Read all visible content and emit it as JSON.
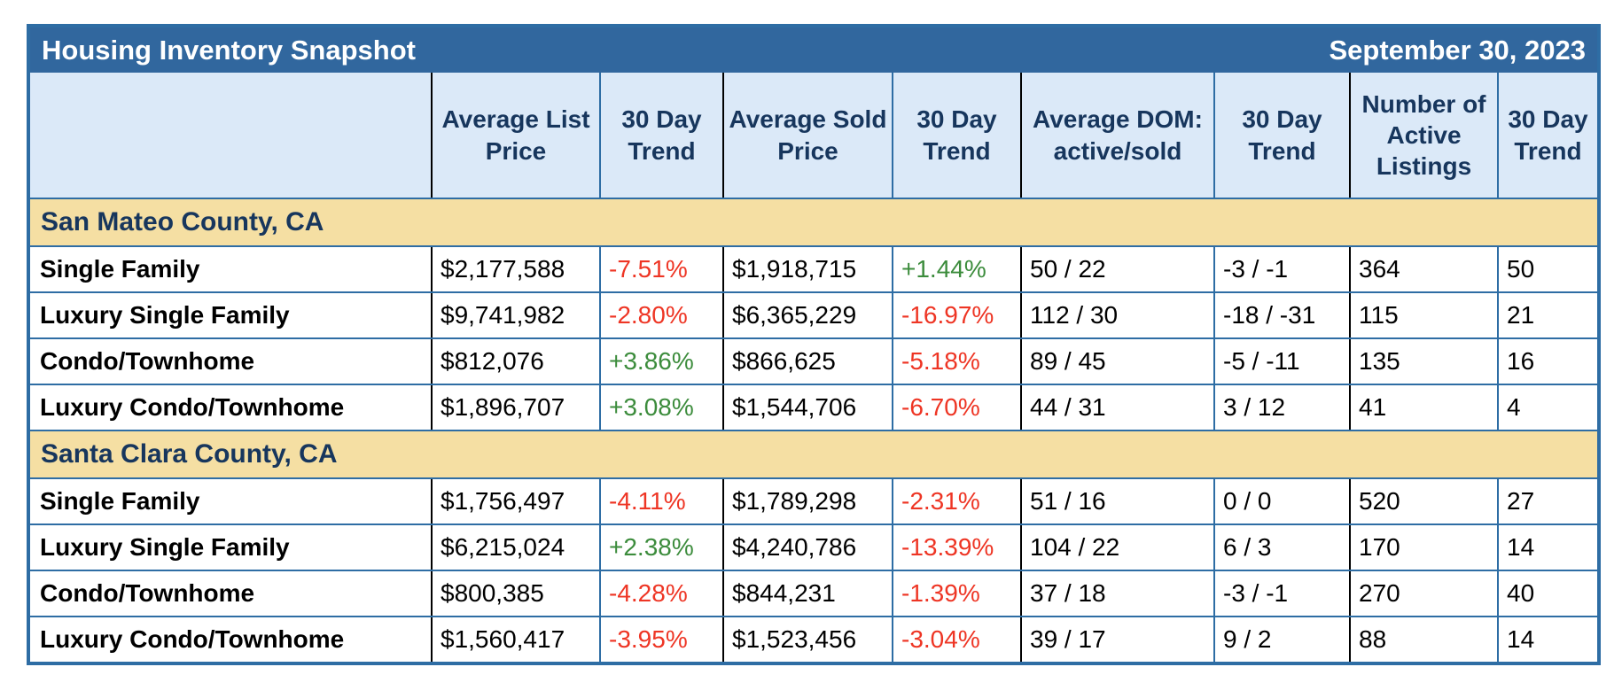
{
  "title": "Housing Inventory Snapshot",
  "date": "September 30, 2023",
  "colors": {
    "title_bar_blue": "#31679e",
    "border_blue": "#2e6da4",
    "header_light_blue": "#dbe9f8",
    "section_band_tan": "#f5dfa3",
    "navy_text": "#17365d",
    "negative_red": "#ee3524",
    "positive_green": "#3c8c3c",
    "group_divider_black": "#000000"
  },
  "columns": [
    "Average List Price",
    "30 Day Trend",
    "Average Sold Price",
    "30 Day Trend",
    "Average DOM: active/sold",
    "30 Day Trend",
    "Number of Active Listings",
    "30 Day Trend"
  ],
  "sections": [
    {
      "name": "San Mateo County, CA",
      "rows": [
        {
          "label": "Single Family",
          "list_price": "$2,177,588",
          "list_trend": "-7.51%",
          "sold_price": "$1,918,715",
          "sold_trend": "+1.44%",
          "dom": "50 / 22",
          "dom_trend": "-3 / -1",
          "active": "364",
          "active_trend": "50"
        },
        {
          "label": "Luxury Single Family",
          "list_price": "$9,741,982",
          "list_trend": "-2.80%",
          "sold_price": "$6,365,229",
          "sold_trend": "-16.97%",
          "dom": "112 / 30",
          "dom_trend": "-18 / -31",
          "active": "115",
          "active_trend": "21"
        },
        {
          "label": "Condo/Townhome",
          "list_price": "$812,076",
          "list_trend": "+3.86%",
          "sold_price": "$866,625",
          "sold_trend": "-5.18%",
          "dom": "89 / 45",
          "dom_trend": "-5 / -11",
          "active": "135",
          "active_trend": "16"
        },
        {
          "label": "Luxury Condo/Townhome",
          "list_price": "$1,896,707",
          "list_trend": "+3.08%",
          "sold_price": "$1,544,706",
          "sold_trend": "-6.70%",
          "dom": "44 / 31",
          "dom_trend": "3 / 12",
          "active": "41",
          "active_trend": "4"
        }
      ]
    },
    {
      "name": "Santa Clara County, CA",
      "rows": [
        {
          "label": "Single Family",
          "list_price": "$1,756,497",
          "list_trend": "-4.11%",
          "sold_price": "$1,789,298",
          "sold_trend": "-2.31%",
          "dom": "51 / 16",
          "dom_trend": "0 / 0",
          "active": "520",
          "active_trend": "27"
        },
        {
          "label": "Luxury Single Family",
          "list_price": "$6,215,024",
          "list_trend": "+2.38%",
          "sold_price": "$4,240,786",
          "sold_trend": "-13.39%",
          "dom": "104 / 22",
          "dom_trend": "6 / 3",
          "active": "170",
          "active_trend": "14"
        },
        {
          "label": "Condo/Townhome",
          "list_price": "$800,385",
          "list_trend": "-4.28%",
          "sold_price": "$844,231",
          "sold_trend": "-1.39%",
          "dom": "37 / 18",
          "dom_trend": "-3 / -1",
          "active": "270",
          "active_trend": "40"
        },
        {
          "label": "Luxury Condo/Townhome",
          "list_price": "$1,560,417",
          "list_trend": "-3.95%",
          "sold_price": "$1,523,456",
          "sold_trend": "-3.04%",
          "dom": "39 / 17",
          "dom_trend": "9 / 2",
          "active": "88",
          "active_trend": "14"
        }
      ]
    }
  ]
}
